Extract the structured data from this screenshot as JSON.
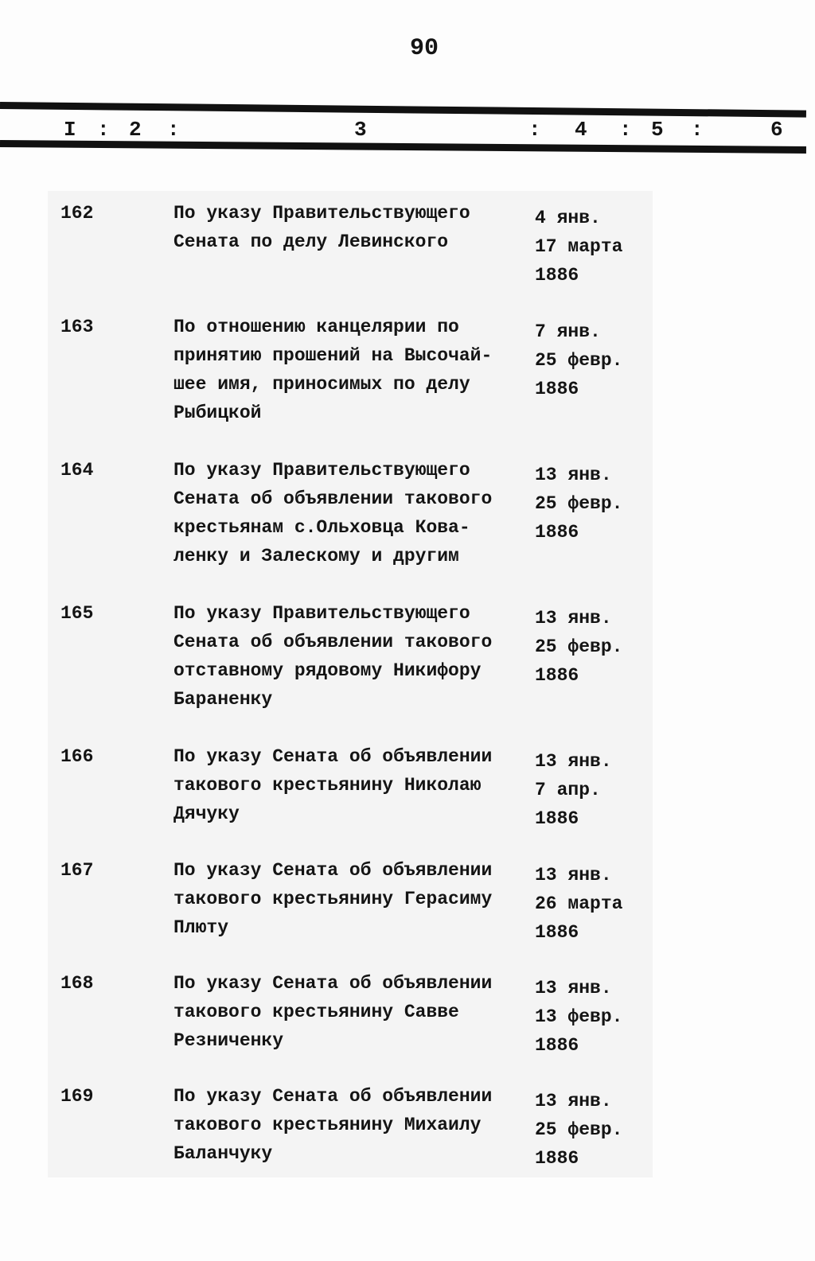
{
  "page_number": "90",
  "column_headers": [
    "I",
    ":",
    "2",
    ":",
    "3",
    ":",
    "4",
    ":",
    "5",
    ":",
    "6"
  ],
  "entries": [
    {
      "num": "162",
      "text": [
        "По указу Правительствующего",
        "Сената по делу Левинского"
      ],
      "date": [
        "4 янв.",
        "17 марта",
        "1886"
      ]
    },
    {
      "num": "163",
      "text": [
        "По отношению канцелярии по",
        "принятию прошений на Высочай-",
        "шее имя, приносимых по делу",
        "Рыбицкой"
      ],
      "date": [
        "7 янв.",
        "25 февр.",
        "1886"
      ]
    },
    {
      "num": "164",
      "text": [
        "По указу Правительствующего",
        "Сената об объявлении такового",
        "крестьянам с.Ольховца Кова-",
        "ленку и Залескому и другим"
      ],
      "date": [
        "13 янв.",
        "25 февр.",
        "1886"
      ]
    },
    {
      "num": "165",
      "text": [
        "По указу Правительствующего",
        "Сената об объявлении такового",
        "отставному рядовому Никифору",
        "Бараненку"
      ],
      "date": [
        "13 янв.",
        "25 февр.",
        "1886"
      ]
    },
    {
      "num": "166",
      "text": [
        "По указу Сената об объявлении",
        "такового крестьянину Николаю",
        "Дячуку"
      ],
      "date": [
        "13 янв.",
        "7 апр.",
        "1886"
      ]
    },
    {
      "num": "167",
      "text": [
        "По указу Сената об объявлении",
        "такового крестьянину Герасиму",
        "Плюту"
      ],
      "date": [
        "13 янв.",
        "26 марта",
        "1886"
      ]
    },
    {
      "num": "168",
      "text": [
        "По указу Сената об объявлении",
        "такового крестьянину Савве",
        "Резниченку"
      ],
      "date": [
        "13 янв.",
        "13 февр.",
        "1886"
      ]
    },
    {
      "num": "169",
      "text": [
        "По указу Сената об объявлении",
        "такового крестьянину Михаилу",
        "Баланчуку"
      ],
      "date": [
        "13 янв.",
        "25 февр.",
        "1886"
      ]
    }
  ]
}
